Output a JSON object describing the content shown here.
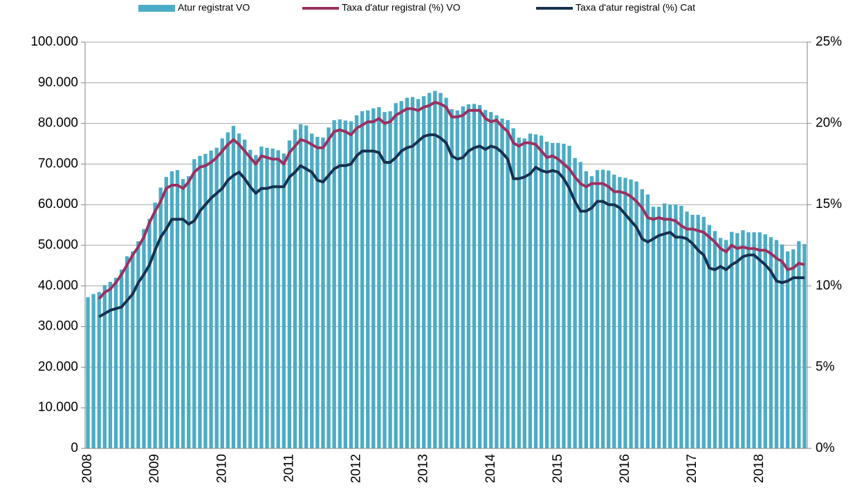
{
  "chart_data": {
    "type": "bar",
    "categories": [
      "2008",
      null,
      null,
      null,
      null,
      null,
      null,
      null,
      null,
      null,
      null,
      null,
      "2009",
      null,
      null,
      null,
      null,
      null,
      null,
      null,
      null,
      null,
      null,
      null,
      "2010",
      null,
      null,
      null,
      null,
      null,
      null,
      null,
      null,
      null,
      null,
      null,
      "2011",
      null,
      null,
      null,
      null,
      null,
      null,
      null,
      null,
      null,
      null,
      null,
      "2012",
      null,
      null,
      null,
      null,
      null,
      null,
      null,
      null,
      null,
      null,
      null,
      "2013",
      null,
      null,
      null,
      null,
      null,
      null,
      null,
      null,
      null,
      null,
      null,
      "2014",
      null,
      null,
      null,
      null,
      null,
      null,
      null,
      null,
      null,
      null,
      null,
      "2015",
      null,
      null,
      null,
      null,
      null,
      null,
      null,
      null,
      null,
      null,
      null,
      "2016",
      null,
      null,
      null,
      null,
      null,
      null,
      null,
      null,
      null,
      null,
      null,
      "2017",
      null,
      null,
      null,
      null,
      null,
      null,
      null,
      null,
      null,
      null,
      null,
      "2018",
      null,
      null,
      null,
      null,
      null,
      null,
      null,
      null
    ],
    "series": [
      {
        "name": "Atur registrat VO",
        "type": "bar",
        "color": "#4bacc6",
        "values": [
          37200,
          38000,
          38500,
          40200,
          41000,
          42000,
          44000,
          47300,
          48500,
          51000,
          54000,
          56500,
          60500,
          64200,
          66800,
          68200,
          68500,
          66300,
          67000,
          71200,
          72000,
          72500,
          73300,
          74000,
          76300,
          77800,
          79400,
          77500,
          76000,
          73500,
          72200,
          74300,
          74000,
          73800,
          73400,
          72600,
          75800,
          78500,
          79800,
          79500,
          77500,
          76700,
          76500,
          79000,
          80800,
          81000,
          80700,
          80500,
          82000,
          83000,
          83200,
          83700,
          84000,
          82800,
          83000,
          85000,
          85500,
          86300,
          86500,
          86000,
          86700,
          87500,
          88000,
          87500,
          86300,
          83500,
          83200,
          84200,
          84700,
          84800,
          84500,
          83300,
          82800,
          82000,
          81200,
          80800,
          78800,
          76500,
          76300,
          77500,
          77300,
          77000,
          75500,
          75200,
          75200,
          75000,
          74500,
          71500,
          70500,
          68200,
          67000,
          68500,
          68600,
          68400,
          67400,
          66800,
          66600,
          66200,
          65700,
          63800,
          62500,
          59500,
          59500,
          60300,
          60000,
          60000,
          59700,
          58300,
          57500,
          57500,
          57000,
          55000,
          53500,
          51800,
          51300,
          53300,
          53000,
          53700,
          53200,
          53200,
          53200,
          52700,
          52000,
          51300,
          50200,
          48500,
          49000,
          51000,
          50300
        ]
      },
      {
        "name": "Taxa d'atur registral (%) VO",
        "type": "line",
        "axis": "y2",
        "color": "#9b3060",
        "values": [
          null,
          null,
          9.2,
          9.6,
          9.8,
          10.2,
          10.7,
          11.3,
          11.9,
          12.4,
          13.0,
          13.9,
          14.6,
          15.2,
          16.0,
          16.2,
          16.2,
          16.0,
          16.4,
          17.0,
          17.3,
          17.4,
          17.6,
          17.9,
          18.3,
          18.7,
          19.0,
          18.7,
          18.3,
          17.9,
          17.5,
          18.0,
          17.9,
          17.8,
          17.8,
          17.5,
          18.2,
          18.6,
          19.0,
          18.9,
          18.7,
          18.5,
          18.5,
          19.0,
          19.5,
          19.6,
          19.5,
          19.3,
          19.7,
          19.9,
          20.1,
          20.1,
          20.3,
          20.0,
          20.1,
          20.5,
          20.7,
          20.9,
          20.9,
          20.8,
          21.0,
          21.1,
          21.3,
          21.2,
          21.0,
          20.4,
          20.4,
          20.5,
          20.8,
          20.8,
          20.8,
          20.3,
          20.1,
          20.2,
          19.8,
          19.5,
          18.8,
          18.6,
          18.8,
          18.8,
          18.7,
          18.3,
          17.9,
          18.0,
          17.8,
          17.5,
          17.2,
          16.7,
          16.3,
          16.1,
          16.3,
          16.3,
          16.3,
          16.1,
          15.8,
          15.8,
          15.7,
          15.5,
          15.2,
          14.8,
          14.2,
          14.1,
          14.2,
          14.1,
          14.1,
          14.0,
          13.7,
          13.5,
          13.5,
          13.4,
          13.3,
          13.0,
          12.7,
          12.3,
          12.1,
          12.5,
          12.3,
          12.4,
          12.3,
          12.3,
          12.2,
          12.2,
          12.0,
          11.7,
          11.5,
          11.0,
          11.1,
          11.4,
          11.3
        ]
      },
      {
        "name": "Taxa d'atur registral (%) Cat",
        "type": "line",
        "axis": "y2",
        "color": "#17304f",
        "values": [
          null,
          null,
          8.1,
          8.3,
          8.5,
          8.6,
          8.7,
          9.1,
          9.5,
          10.2,
          10.7,
          11.3,
          12.2,
          13.0,
          13.5,
          14.1,
          14.1,
          14.1,
          13.8,
          14.0,
          14.6,
          15.0,
          15.4,
          15.7,
          16.0,
          16.5,
          16.8,
          17.0,
          16.6,
          16.1,
          15.7,
          16.0,
          16.0,
          16.1,
          16.1,
          16.1,
          16.7,
          17.0,
          17.4,
          17.2,
          17.0,
          16.5,
          16.4,
          16.8,
          17.2,
          17.4,
          17.4,
          17.5,
          18.0,
          18.3,
          18.3,
          18.3,
          18.2,
          17.6,
          17.6,
          17.9,
          18.3,
          18.5,
          18.6,
          18.9,
          19.2,
          19.3,
          19.3,
          19.1,
          18.8,
          18.0,
          17.8,
          17.9,
          18.3,
          18.5,
          18.6,
          18.4,
          18.6,
          18.5,
          18.2,
          17.8,
          16.6,
          16.6,
          16.7,
          16.9,
          17.3,
          17.1,
          17.0,
          17.1,
          17.0,
          16.6,
          16.0,
          15.2,
          14.6,
          14.6,
          14.8,
          15.2,
          15.2,
          15.0,
          15.0,
          14.8,
          14.4,
          14.0,
          13.6,
          12.9,
          12.7,
          12.9,
          13.1,
          13.2,
          13.3,
          13.0,
          13.0,
          12.9,
          12.6,
          12.2,
          11.9,
          11.1,
          11.0,
          11.2,
          11.0,
          11.3,
          11.5,
          11.8,
          11.9,
          11.9,
          11.6,
          11.3,
          10.9,
          10.3,
          10.2,
          10.3,
          10.5,
          10.5,
          10.5
        ]
      }
    ],
    "ylim": [
      0,
      100000
    ],
    "yticks": [
      0,
      {
        "value": 10000,
        "label": "10.000"
      },
      {
        "value": 20000,
        "label": "20.000"
      },
      {
        "value": 30000,
        "label": "30.000"
      },
      {
        "value": 40000,
        "label": "40.000"
      },
      {
        "value": 50000,
        "label": "50.000"
      },
      {
        "value": 60000,
        "label": "60.000"
      },
      {
        "value": 70000,
        "label": "70.000"
      },
      {
        "value": 80000,
        "label": "80.000"
      },
      {
        "value": 90000,
        "label": "90.000"
      },
      {
        "value": 100000,
        "label": "100.000"
      }
    ],
    "y2lim": [
      0,
      25
    ],
    "y2ticks": [
      {
        "value": 0,
        "label": "0%"
      },
      {
        "value": 5,
        "label": "5%"
      },
      {
        "value": 10,
        "label": "10%"
      },
      {
        "value": 15,
        "label": "15%"
      },
      {
        "value": 20,
        "label": "20%"
      },
      {
        "value": 25,
        "label": "25%"
      }
    ],
    "grid": true,
    "legend": "top"
  }
}
